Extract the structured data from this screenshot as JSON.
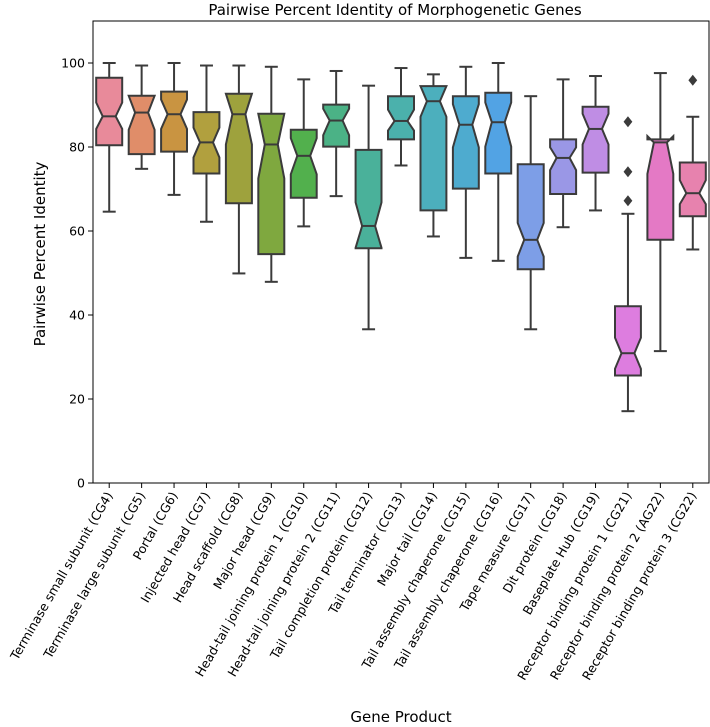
{
  "chart_data": {
    "type": "boxplot",
    "title": "Pairwise Percent Identity of Morphogenetic Genes",
    "xlabel": "Gene Product",
    "ylabel": "Pairwise Percent Identity",
    "ylim": [
      0,
      110
    ],
    "yticks": [
      0,
      20,
      40,
      60,
      80,
      100
    ],
    "notched": true,
    "grid": false,
    "categories": [
      "Terminase small subunit (CG4)",
      "Terminase large subunit (CG5)",
      "Portal (CG6)",
      "Injected head (CG7)",
      "Head scaffold (CG8)",
      "Major head (CG9)",
      "Head-tail joining protein 1 (CG10)",
      "Head-tail joining protein 2 (CG11)",
      "Tail completion protein (CG12)",
      "Tail terminator (CG13)",
      "Major tail (CG14)",
      "Tail assembly chaperone (CG15)",
      "Tail assembly chaperone (CG16)",
      "Tape measure (CG17)",
      "Dit protein (CG18)",
      "Baseplate Hub (CG19)",
      "Receptor binding protein 1 (CG21)",
      "Receptor binding protein 2 (AG22)",
      "Receptor binding protein 3 (CG22)"
    ],
    "colors": [
      "#e88a9a",
      "#e08d69",
      "#c99441",
      "#b1a03e",
      "#9ea23d",
      "#7fa83f",
      "#52b04d",
      "#4bb286",
      "#4ab19a",
      "#4bb1ac",
      "#4cafbd",
      "#4eabcf",
      "#52a3e4",
      "#7d9ee7",
      "#9a97e6",
      "#bf8de4",
      "#dd7ddf",
      "#e479c5",
      "#e782ae"
    ],
    "boxes": [
      {
        "whislo": 64.6,
        "q1": 80.4,
        "med": 87.3,
        "q3": 96.5,
        "whishi": 100,
        "notch_lo": 84.3,
        "notch_hi": 90.6,
        "fliers": []
      },
      {
        "whislo": 74.8,
        "q1": 78.3,
        "med": 88.2,
        "q3": 92.2,
        "whishi": 99.4,
        "notch_lo": 84.1,
        "notch_hi": 92.2,
        "fliers": []
      },
      {
        "whislo": 68.6,
        "q1": 78.9,
        "med": 87.8,
        "q3": 93.2,
        "whishi": 100,
        "notch_lo": 84.3,
        "notch_hi": 91.3,
        "fliers": []
      },
      {
        "whislo": 62.2,
        "q1": 73.7,
        "med": 81.1,
        "q3": 88.3,
        "whishi": 99.4,
        "notch_lo": 77.5,
        "notch_hi": 84.6,
        "fliers": []
      },
      {
        "whislo": 49.9,
        "q1": 66.6,
        "med": 87.8,
        "q3": 92.7,
        "whishi": 99.4,
        "notch_lo": 80.6,
        "notch_hi": 92.7,
        "fliers": []
      },
      {
        "whislo": 47.9,
        "q1": 54.5,
        "med": 80.6,
        "q3": 87.9,
        "whishi": 99.1,
        "notch_lo": 72.5,
        "notch_hi": 87.9,
        "fliers": []
      },
      {
        "whislo": 61.1,
        "q1": 67.9,
        "med": 77.9,
        "q3": 84.1,
        "whishi": 96.1,
        "notch_lo": 73.5,
        "notch_hi": 82.1,
        "fliers": []
      },
      {
        "whislo": 68.3,
        "q1": 80.1,
        "med": 86.3,
        "q3": 90.1,
        "whishi": 98.1,
        "notch_lo": 82.8,
        "notch_hi": 89.1,
        "fliers": []
      },
      {
        "whislo": 36.6,
        "q1": 55.9,
        "med": 61.2,
        "q3": 79.3,
        "whishi": 94.6,
        "notch_lo": 56.0,
        "notch_hi": 66.8,
        "fliers": []
      },
      {
        "whislo": 75.6,
        "q1": 81.8,
        "med": 86.2,
        "q3": 92.1,
        "whishi": 98.8,
        "notch_lo": 83.9,
        "notch_hi": 88.9,
        "fliers": []
      },
      {
        "whislo": 58.7,
        "q1": 64.9,
        "med": 90.9,
        "q3": 94.5,
        "whishi": 97.3,
        "notch_lo": 87.2,
        "notch_hi": 94.5,
        "fliers": []
      },
      {
        "whislo": 53.6,
        "q1": 70.1,
        "med": 85.3,
        "q3": 92.1,
        "whishi": 99.1,
        "notch_lo": 79.9,
        "notch_hi": 90.2,
        "fliers": []
      },
      {
        "whislo": 52.9,
        "q1": 73.7,
        "med": 85.9,
        "q3": 92.9,
        "whishi": 100,
        "notch_lo": 80.1,
        "notch_hi": 90.6,
        "fliers": []
      },
      {
        "whislo": 36.6,
        "q1": 50.9,
        "med": 57.9,
        "q3": 75.9,
        "whishi": 92.1,
        "notch_lo": 53.9,
        "notch_hi": 61.9,
        "fliers": []
      },
      {
        "whislo": 60.9,
        "q1": 68.8,
        "med": 77.4,
        "q3": 81.8,
        "whishi": 96.1,
        "notch_lo": 74.5,
        "notch_hi": 79.9,
        "fliers": []
      },
      {
        "whislo": 64.9,
        "q1": 73.9,
        "med": 84.3,
        "q3": 89.6,
        "whishi": 96.9,
        "notch_lo": 80.6,
        "notch_hi": 87.9,
        "fliers": []
      },
      {
        "whislo": 17.1,
        "q1": 25.6,
        "med": 30.9,
        "q3": 42.1,
        "whishi": 64.1,
        "notch_lo": 27.2,
        "notch_hi": 34.6,
        "fliers": [
          67.2,
          74.1,
          86.0
        ]
      },
      {
        "whislo": 31.4,
        "q1": 57.9,
        "med": 81.1,
        "q3": 81.8,
        "whishi": 97.6,
        "notch_lo": 73.6,
        "notch_hi": 82.6,
        "fliers": []
      },
      {
        "whislo": 55.6,
        "q1": 63.5,
        "med": 69.0,
        "q3": 76.3,
        "whishi": 87.2,
        "notch_lo": 66.4,
        "notch_hi": 72.1,
        "fliers": [
          95.9
        ]
      }
    ]
  }
}
